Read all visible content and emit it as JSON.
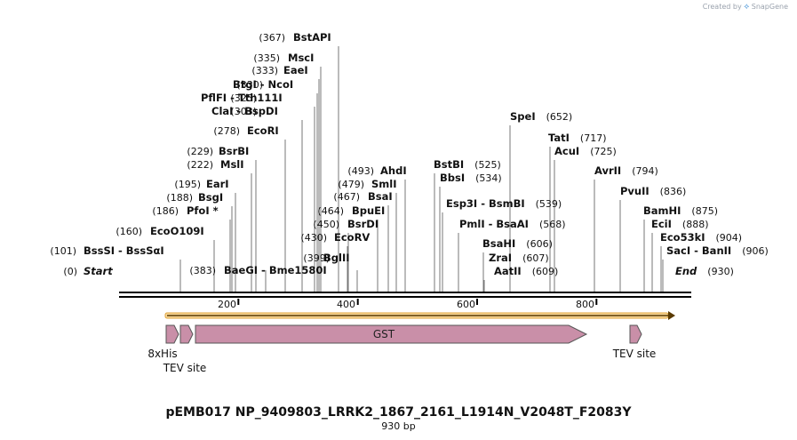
{
  "credit": {
    "prefix": "Created by",
    "brand": "SnapGene"
  },
  "title": "pEMB017 NP_9409803_LRRK2_1867_2161_L1914N_V2048T_F2083Y",
  "length_label": "930 bp",
  "ruler_ticks": [
    "200",
    "400",
    "600",
    "800"
  ],
  "sites": [
    {
      "pos": "(367)",
      "names": [
        "BstAPI"
      ]
    },
    {
      "pos": "(335)",
      "names": [
        "MscI"
      ]
    },
    {
      "pos": "(333)",
      "names": [
        "EaeI"
      ]
    },
    {
      "pos": "(330)",
      "names": [
        "BtgI",
        "NcoI"
      ]
    },
    {
      "pos": "(325)",
      "names": [
        "PflFI",
        "Tth111I"
      ]
    },
    {
      "pos": "(303)",
      "names": [
        "ClaI",
        "BspDI"
      ]
    },
    {
      "pos": "(278)",
      "names": [
        "EcoRI"
      ]
    },
    {
      "pos": "(229)",
      "names": [
        "BsrBI"
      ]
    },
    {
      "pos": "(222)",
      "names": [
        "MslI"
      ]
    },
    {
      "pos": "(195)",
      "names": [
        "EarI"
      ]
    },
    {
      "pos": "(188)",
      "names": [
        "BsgI"
      ]
    },
    {
      "pos": "(186)",
      "names": [
        "PfoI *"
      ]
    },
    {
      "pos": "(160)",
      "names": [
        "EcoO109I"
      ]
    },
    {
      "pos": "(101)",
      "names": [
        "BssSI",
        "BssSαI"
      ]
    },
    {
      "pos": "(0)",
      "names": [
        "Start"
      ]
    },
    {
      "pos": "(383)",
      "names": [
        "BaeGI",
        "Bme1580I"
      ]
    },
    {
      "pos": "(399)",
      "names": [
        "BglII"
      ]
    },
    {
      "pos": "(430)",
      "names": [
        "EcoRV"
      ]
    },
    {
      "pos": "(450)",
      "names": [
        "BsrDI"
      ]
    },
    {
      "pos": "(464)",
      "names": [
        "BpuEI"
      ]
    },
    {
      "pos": "(467)",
      "names": [
        "BsaI"
      ]
    },
    {
      "pos": "(479)",
      "names": [
        "SmlI"
      ]
    },
    {
      "pos": "(493)",
      "names": [
        "AhdI"
      ]
    },
    {
      "pos": "(525)",
      "names": [
        "BstBI"
      ]
    },
    {
      "pos": "(534)",
      "names": [
        "BbsI"
      ]
    },
    {
      "pos": "(539)",
      "names": [
        "Esp3I",
        "BsmBI"
      ]
    },
    {
      "pos": "(568)",
      "names": [
        "PmlI",
        "BsaAI"
      ]
    },
    {
      "pos": "(606)",
      "names": [
        "BsaHI"
      ]
    },
    {
      "pos": "(607)",
      "names": [
        "ZraI"
      ]
    },
    {
      "pos": "(609)",
      "names": [
        "AatII"
      ]
    },
    {
      "pos": "(652)",
      "names": [
        "SpeI"
      ]
    },
    {
      "pos": "(717)",
      "names": [
        "TatI"
      ]
    },
    {
      "pos": "(725)",
      "names": [
        "AcuI"
      ]
    },
    {
      "pos": "(794)",
      "names": [
        "AvrII"
      ]
    },
    {
      "pos": "(836)",
      "names": [
        "PvuII"
      ]
    },
    {
      "pos": "(875)",
      "names": [
        "BamHI"
      ]
    },
    {
      "pos": "(888)",
      "names": [
        "EciI"
      ]
    },
    {
      "pos": "(904)",
      "names": [
        "Eco53kI"
      ]
    },
    {
      "pos": "(906)",
      "names": [
        "SacI",
        "BanII"
      ]
    },
    {
      "pos": "(930)",
      "names": [
        "End"
      ]
    }
  ],
  "features": [
    {
      "label": "8xHis",
      "color": "#c98fa8"
    },
    {
      "label": "TEV site",
      "color": "#c98fa8"
    },
    {
      "label": "GST",
      "color": "#c98fa8"
    },
    {
      "label": "TEV site",
      "color": "#c98fa8"
    }
  ],
  "orf_color": "#f2b233"
}
